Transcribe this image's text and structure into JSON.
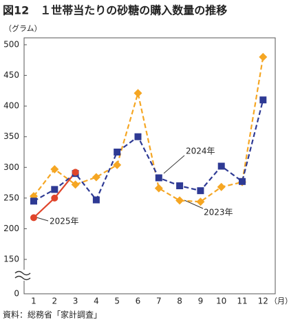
{
  "chart_data": {
    "type": "line",
    "title": "図12　１世帯当たりの砂糖の購入数量の推移",
    "y_label": "（グラム）",
    "x_label": "（月）",
    "source": "資料：総務省「家計調査」",
    "categories": [
      "1",
      "2",
      "3",
      "4",
      "5",
      "6",
      "7",
      "8",
      "9",
      "10",
      "11",
      "12"
    ],
    "series": [
      {
        "name": "2023年",
        "color": "#f5a623",
        "dash": true,
        "marker": "diamond",
        "values": [
          253,
          297,
          272,
          284,
          304,
          421,
          266,
          246,
          244,
          268,
          276,
          480
        ]
      },
      {
        "name": "2024年",
        "color": "#2e3a94",
        "dash": true,
        "marker": "square",
        "values": [
          245,
          264,
          290,
          247,
          325,
          350,
          283,
          270,
          262,
          302,
          277,
          410
        ]
      },
      {
        "name": "2025年",
        "color": "#e0452b",
        "dash": false,
        "marker": "circle",
        "values": [
          218,
          250,
          292,
          null,
          null,
          null,
          null,
          null,
          null,
          null,
          null,
          null
        ]
      }
    ],
    "ylim": [
      0,
      500
    ],
    "yticks": [
      0,
      150,
      200,
      250,
      300,
      350,
      400,
      450,
      500
    ],
    "axis_break": [
      0,
      150
    ],
    "grid": false
  }
}
